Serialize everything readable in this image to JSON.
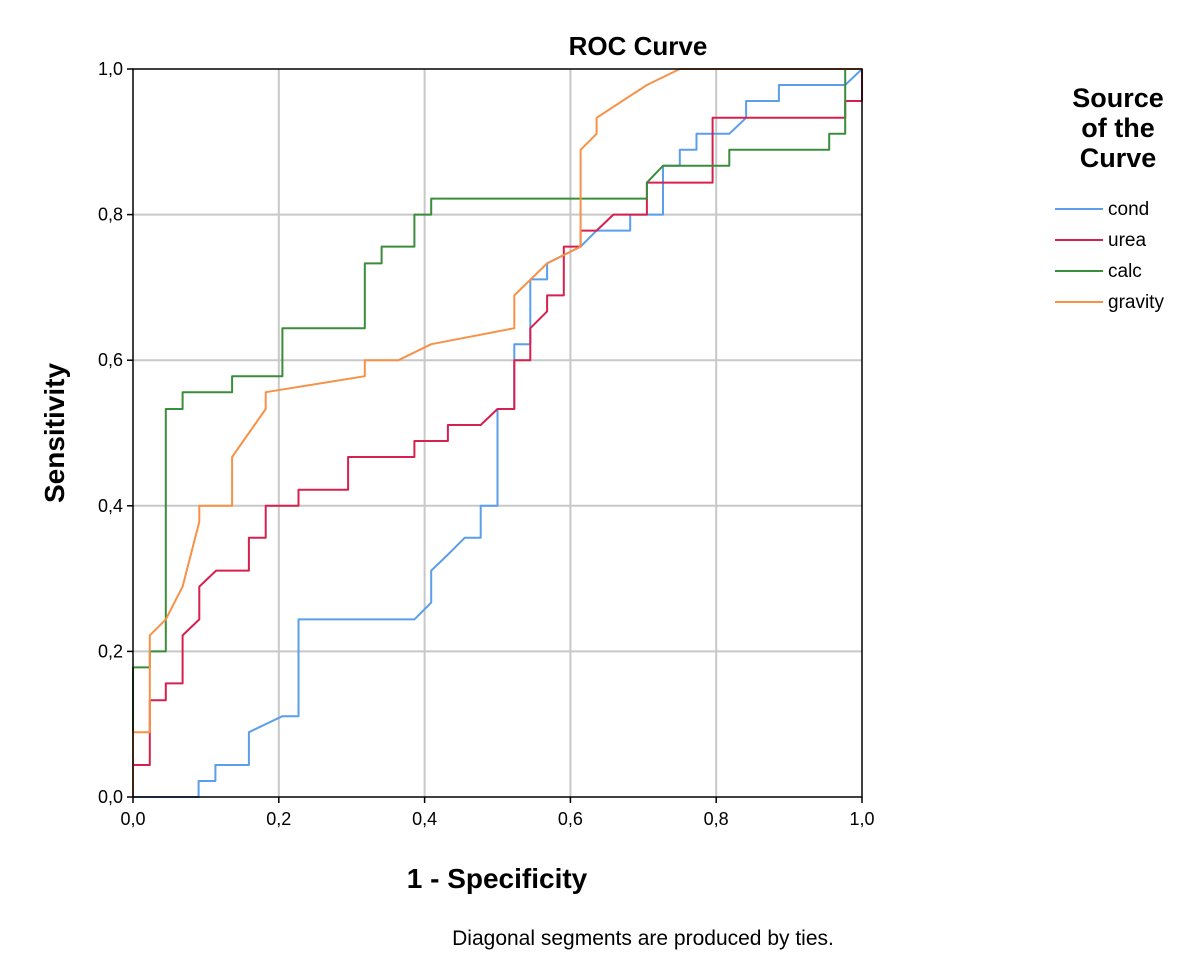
{
  "chart_data": {
    "type": "line",
    "title": "ROC Curve",
    "xlabel": "1 - Specificity",
    "ylabel": "Sensitivity",
    "xlim": [
      0,
      1
    ],
    "ylim": [
      0,
      1
    ],
    "xticks": [
      "0,0",
      "0,2",
      "0,4",
      "0,6",
      "0,8",
      "1,0"
    ],
    "yticks": [
      "0,0",
      "0,2",
      "0,4",
      "0,6",
      "0,8",
      "1,0"
    ],
    "grid": true,
    "legend": {
      "title_lines": [
        "Source",
        "of the",
        "Curve"
      ],
      "placement": "right"
    },
    "footnote": "Diagonal segments are produced by ties.",
    "series": [
      {
        "name": "cond",
        "color": "#5b9ee9",
        "points": [
          [
            0,
            0
          ],
          [
            0.09,
            0
          ],
          [
            0.09,
            0.022
          ],
          [
            0.113,
            0.022
          ],
          [
            0.113,
            0.044
          ],
          [
            0.159,
            0.044
          ],
          [
            0.159,
            0.089
          ],
          [
            0.205,
            0.111
          ],
          [
            0.227,
            0.111
          ],
          [
            0.227,
            0.244
          ],
          [
            0.386,
            0.244
          ],
          [
            0.409,
            0.267
          ],
          [
            0.409,
            0.311
          ],
          [
            0.432,
            0.333
          ],
          [
            0.455,
            0.356
          ],
          [
            0.477,
            0.356
          ],
          [
            0.477,
            0.4
          ],
          [
            0.5,
            0.4
          ],
          [
            0.5,
            0.533
          ],
          [
            0.523,
            0.533
          ],
          [
            0.523,
            0.622
          ],
          [
            0.545,
            0.622
          ],
          [
            0.545,
            0.711
          ],
          [
            0.568,
            0.711
          ],
          [
            0.568,
            0.733
          ],
          [
            0.614,
            0.756
          ],
          [
            0.636,
            0.778
          ],
          [
            0.682,
            0.778
          ],
          [
            0.682,
            0.8
          ],
          [
            0.727,
            0.8
          ],
          [
            0.727,
            0.867
          ],
          [
            0.75,
            0.867
          ],
          [
            0.75,
            0.889
          ],
          [
            0.773,
            0.889
          ],
          [
            0.773,
            0.911
          ],
          [
            0.818,
            0.911
          ],
          [
            0.841,
            0.933
          ],
          [
            0.841,
            0.956
          ],
          [
            0.886,
            0.956
          ],
          [
            0.886,
            0.978
          ],
          [
            0.977,
            0.978
          ],
          [
            1,
            1
          ]
        ]
      },
      {
        "name": "urea",
        "color": "#d6204e",
        "points": [
          [
            0,
            0
          ],
          [
            0,
            0.044
          ],
          [
            0.023,
            0.044
          ],
          [
            0.023,
            0.089
          ],
          [
            0.023,
            0.133
          ],
          [
            0.045,
            0.133
          ],
          [
            0.045,
            0.156
          ],
          [
            0.068,
            0.156
          ],
          [
            0.068,
            0.222
          ],
          [
            0.091,
            0.244
          ],
          [
            0.091,
            0.289
          ],
          [
            0.114,
            0.311
          ],
          [
            0.159,
            0.311
          ],
          [
            0.159,
            0.356
          ],
          [
            0.182,
            0.356
          ],
          [
            0.182,
            0.4
          ],
          [
            0.227,
            0.4
          ],
          [
            0.227,
            0.422
          ],
          [
            0.295,
            0.422
          ],
          [
            0.295,
            0.467
          ],
          [
            0.386,
            0.467
          ],
          [
            0.386,
            0.489
          ],
          [
            0.432,
            0.489
          ],
          [
            0.432,
            0.511
          ],
          [
            0.477,
            0.511
          ],
          [
            0.5,
            0.533
          ],
          [
            0.523,
            0.533
          ],
          [
            0.523,
            0.6
          ],
          [
            0.545,
            0.6
          ],
          [
            0.545,
            0.644
          ],
          [
            0.568,
            0.667
          ],
          [
            0.568,
            0.689
          ],
          [
            0.591,
            0.689
          ],
          [
            0.591,
            0.756
          ],
          [
            0.614,
            0.756
          ],
          [
            0.614,
            0.778
          ],
          [
            0.636,
            0.778
          ],
          [
            0.659,
            0.8
          ],
          [
            0.705,
            0.8
          ],
          [
            0.705,
            0.844
          ],
          [
            0.795,
            0.844
          ],
          [
            0.795,
            0.933
          ],
          [
            0.977,
            0.933
          ],
          [
            0.977,
            0.956
          ],
          [
            1,
            0.956
          ],
          [
            1,
            1
          ]
        ]
      },
      {
        "name": "calc",
        "color": "#3a8d3a",
        "points": [
          [
            0,
            0
          ],
          [
            0,
            0.178
          ],
          [
            0.023,
            0.178
          ],
          [
            0.023,
            0.2
          ],
          [
            0.045,
            0.2
          ],
          [
            0.045,
            0.533
          ],
          [
            0.068,
            0.533
          ],
          [
            0.068,
            0.556
          ],
          [
            0.136,
            0.556
          ],
          [
            0.136,
            0.578
          ],
          [
            0.205,
            0.578
          ],
          [
            0.205,
            0.644
          ],
          [
            0.318,
            0.644
          ],
          [
            0.318,
            0.733
          ],
          [
            0.341,
            0.733
          ],
          [
            0.341,
            0.756
          ],
          [
            0.386,
            0.756
          ],
          [
            0.386,
            0.8
          ],
          [
            0.409,
            0.8
          ],
          [
            0.409,
            0.822
          ],
          [
            0.705,
            0.822
          ],
          [
            0.705,
            0.844
          ],
          [
            0.727,
            0.867
          ],
          [
            0.818,
            0.867
          ],
          [
            0.818,
            0.889
          ],
          [
            0.955,
            0.889
          ],
          [
            0.955,
            0.911
          ],
          [
            0.977,
            0.911
          ],
          [
            0.977,
            1
          ],
          [
            1,
            1
          ]
        ]
      },
      {
        "name": "gravity",
        "color": "#f79148",
        "points": [
          [
            0,
            0
          ],
          [
            0,
            0.089
          ],
          [
            0.023,
            0.089
          ],
          [
            0.023,
            0.222
          ],
          [
            0.045,
            0.244
          ],
          [
            0.068,
            0.289
          ],
          [
            0.091,
            0.378
          ],
          [
            0.091,
            0.4
          ],
          [
            0.136,
            0.4
          ],
          [
            0.136,
            0.467
          ],
          [
            0.182,
            0.533
          ],
          [
            0.182,
            0.556
          ],
          [
            0.318,
            0.578
          ],
          [
            0.318,
            0.6
          ],
          [
            0.364,
            0.6
          ],
          [
            0.409,
            0.622
          ],
          [
            0.523,
            0.644
          ],
          [
            0.523,
            0.689
          ],
          [
            0.568,
            0.733
          ],
          [
            0.614,
            0.756
          ],
          [
            0.614,
            0.889
          ],
          [
            0.636,
            0.911
          ],
          [
            0.636,
            0.933
          ],
          [
            0.705,
            0.978
          ],
          [
            0.75,
            1
          ],
          [
            1,
            1
          ]
        ]
      }
    ]
  }
}
